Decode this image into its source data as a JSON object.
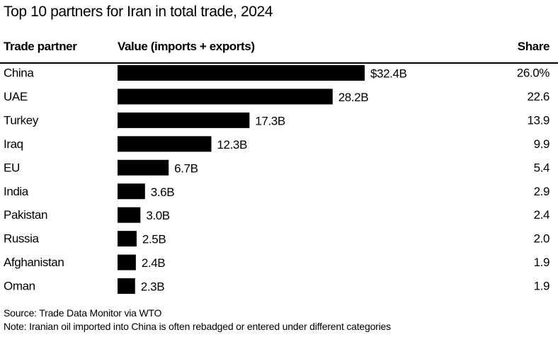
{
  "chart_data": {
    "type": "bar",
    "orientation": "horizontal",
    "title": "Top 10 partners for Iran in total trade, 2024",
    "columns": [
      "Trade partner",
      "Value (imports + exports)",
      "Share"
    ],
    "categories": [
      "China",
      "UAE",
      "Turkey",
      "Iraq",
      "EU",
      "India",
      "Pakistan",
      "Russia",
      "Afghanistan",
      "Oman"
    ],
    "values": [
      32.4,
      28.2,
      17.3,
      12.3,
      6.7,
      3.6,
      3.0,
      2.5,
      2.4,
      2.3
    ],
    "value_labels": [
      "$32.4B",
      "28.2B",
      "17.3B",
      "12.3B",
      "6.7B",
      "3.6B",
      "3.0B",
      "2.5B",
      "2.4B",
      "2.3B"
    ],
    "share": [
      "26.0%",
      "22.6",
      "13.9",
      "9.9",
      "5.4",
      "2.9",
      "2.4",
      "2.0",
      "1.9",
      "1.9"
    ],
    "unit": "billion USD",
    "bar_color": "#000000",
    "grid": false
  },
  "footer": {
    "source": "Source: Trade Data Monitor via WTO",
    "note": "Note: Iranian oil imported into China is often rebadged or entered under different categories"
  }
}
